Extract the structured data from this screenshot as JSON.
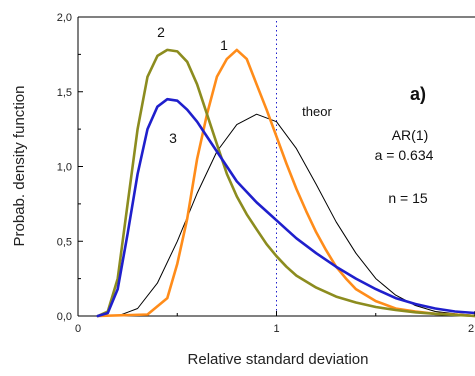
{
  "chart_data": {
    "type": "line",
    "xlabel": "Relative standard deviation",
    "ylabel": "Probab. density function",
    "xlim": [
      0,
      2
    ],
    "ylim": [
      0,
      2
    ],
    "xticks": [
      "0",
      "1",
      "2"
    ],
    "yticks": [
      "0,0",
      "0,5",
      "1,0",
      "1,5",
      "2,0"
    ],
    "grid": false,
    "reference_line_x": 1,
    "annotations": {
      "panel": "a)",
      "model": "AR(1)",
      "param": "a = 0.634",
      "n": "n = 15"
    },
    "series": [
      {
        "name": "1",
        "color": "#ff8c1a",
        "x": [
          0.1,
          0.35,
          0.45,
          0.5,
          0.55,
          0.6,
          0.65,
          0.7,
          0.75,
          0.8,
          0.85,
          0.9,
          0.95,
          1.0,
          1.05,
          1.1,
          1.15,
          1.2,
          1.25,
          1.3,
          1.35,
          1.4,
          1.5,
          1.6,
          1.7,
          1.8,
          1.9,
          2.0
        ],
        "y": [
          0.0,
          0.01,
          0.12,
          0.35,
          0.65,
          1.05,
          1.35,
          1.6,
          1.72,
          1.78,
          1.72,
          1.55,
          1.38,
          1.2,
          1.02,
          0.85,
          0.7,
          0.56,
          0.44,
          0.33,
          0.25,
          0.18,
          0.1,
          0.05,
          0.03,
          0.015,
          0.01,
          0.0
        ]
      },
      {
        "name": "2",
        "color": "#8c8c1f",
        "x": [
          0.1,
          0.15,
          0.2,
          0.25,
          0.3,
          0.35,
          0.4,
          0.45,
          0.5,
          0.55,
          0.6,
          0.65,
          0.7,
          0.75,
          0.8,
          0.85,
          0.9,
          0.95,
          1.0,
          1.05,
          1.1,
          1.2,
          1.3,
          1.4,
          1.5,
          1.6,
          1.7,
          1.8,
          2.0
        ],
        "y": [
          0.0,
          0.03,
          0.25,
          0.75,
          1.25,
          1.6,
          1.74,
          1.78,
          1.77,
          1.7,
          1.55,
          1.35,
          1.15,
          0.95,
          0.8,
          0.68,
          0.58,
          0.48,
          0.4,
          0.33,
          0.27,
          0.19,
          0.13,
          0.09,
          0.06,
          0.04,
          0.025,
          0.015,
          0.0
        ]
      },
      {
        "name": "3",
        "color": "#1f1fcc",
        "x": [
          0.1,
          0.15,
          0.2,
          0.25,
          0.3,
          0.35,
          0.4,
          0.45,
          0.5,
          0.55,
          0.6,
          0.65,
          0.7,
          0.75,
          0.8,
          0.85,
          0.9,
          0.95,
          1.0,
          1.05,
          1.1,
          1.2,
          1.3,
          1.4,
          1.5,
          1.6,
          1.7,
          1.8,
          1.9,
          2.0
        ],
        "y": [
          0.0,
          0.02,
          0.18,
          0.55,
          0.95,
          1.25,
          1.4,
          1.45,
          1.44,
          1.38,
          1.3,
          1.2,
          1.1,
          1.0,
          0.9,
          0.83,
          0.76,
          0.7,
          0.64,
          0.58,
          0.52,
          0.42,
          0.33,
          0.25,
          0.18,
          0.12,
          0.08,
          0.05,
          0.03,
          0.02
        ]
      },
      {
        "name": "theor",
        "color": "#000000",
        "x": [
          0.2,
          0.3,
          0.4,
          0.5,
          0.6,
          0.7,
          0.8,
          0.9,
          1.0,
          1.1,
          1.2,
          1.3,
          1.4,
          1.5,
          1.6,
          1.7,
          1.8,
          1.9,
          2.0
        ],
        "y": [
          0.0,
          0.05,
          0.22,
          0.5,
          0.82,
          1.1,
          1.28,
          1.35,
          1.3,
          1.12,
          0.88,
          0.63,
          0.42,
          0.25,
          0.14,
          0.07,
          0.03,
          0.015,
          0.005
        ]
      }
    ]
  }
}
